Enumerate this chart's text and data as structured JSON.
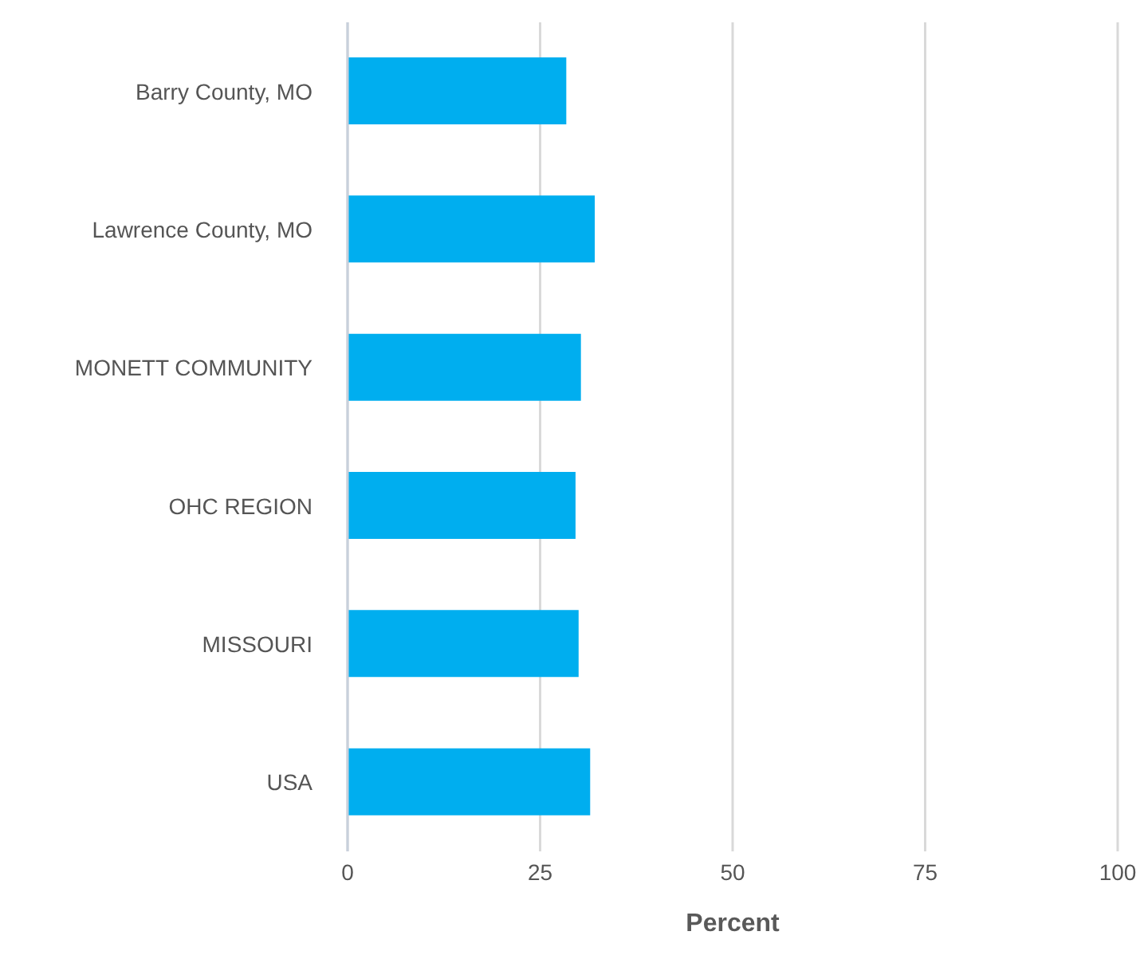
{
  "chart_data": {
    "type": "bar",
    "orientation": "horizontal",
    "categories": [
      "Barry County, MO",
      "Lawrence County, MO",
      "MONETT COMMUNITY",
      "OHC REGION",
      "MISSOURI",
      "USA"
    ],
    "values": [
      28.4,
      32.1,
      30.3,
      29.6,
      30.0,
      31.5
    ],
    "color": "#00aeef",
    "xlim": [
      0,
      100
    ],
    "xticks": [
      0,
      25,
      50,
      75,
      100
    ],
    "xlabel": "Percent",
    "grid": "x"
  }
}
